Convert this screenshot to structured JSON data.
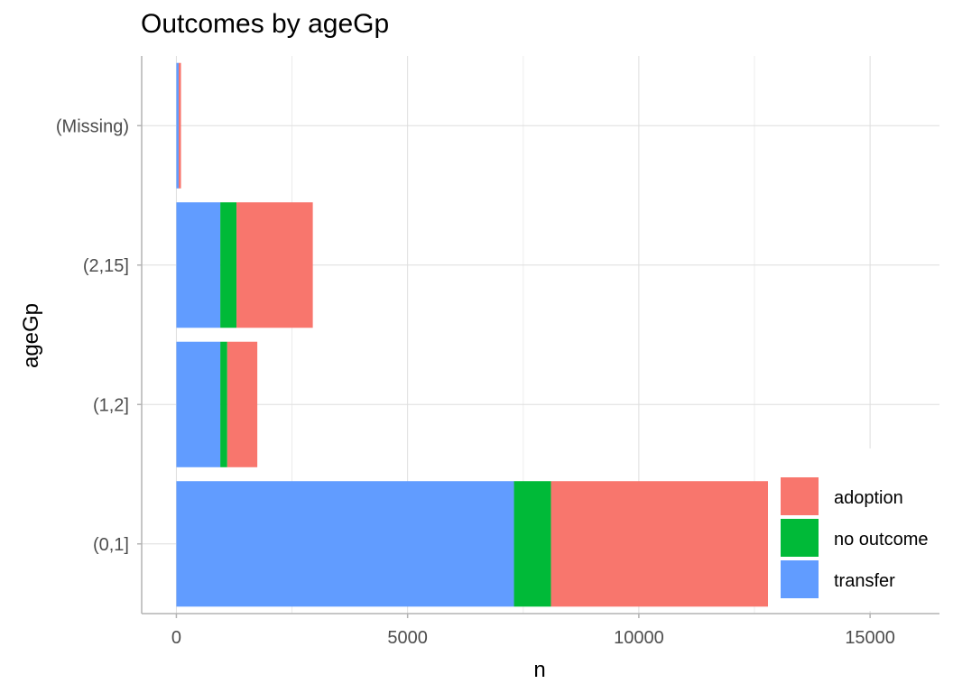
{
  "chart_data": {
    "type": "bar",
    "orientation": "horizontal",
    "stacked": true,
    "title": "Outcomes by ageGp",
    "xlabel": "n",
    "ylabel": "ageGp",
    "categories": [
      "(0,1]",
      "(1,2]",
      "(2,15]",
      "(Missing)"
    ],
    "series": [
      {
        "name": "transfer",
        "color": "#619CFF",
        "values": [
          7300,
          950,
          950,
          50
        ]
      },
      {
        "name": "no outcome",
        "color": "#00BA38",
        "values": [
          800,
          150,
          350,
          0
        ]
      },
      {
        "name": "adoption",
        "color": "#F8766D",
        "values": [
          4700,
          650,
          1650,
          50
        ]
      }
    ],
    "legend_order": [
      "adoption",
      "no outcome",
      "transfer"
    ],
    "xlim": [
      -750,
      16500
    ],
    "xticks": [
      0,
      5000,
      10000,
      15000
    ],
    "xtick_labels": [
      "0",
      "5000",
      "10000",
      "15000"
    ],
    "grid": true,
    "legend_position": "bottom-right"
  }
}
